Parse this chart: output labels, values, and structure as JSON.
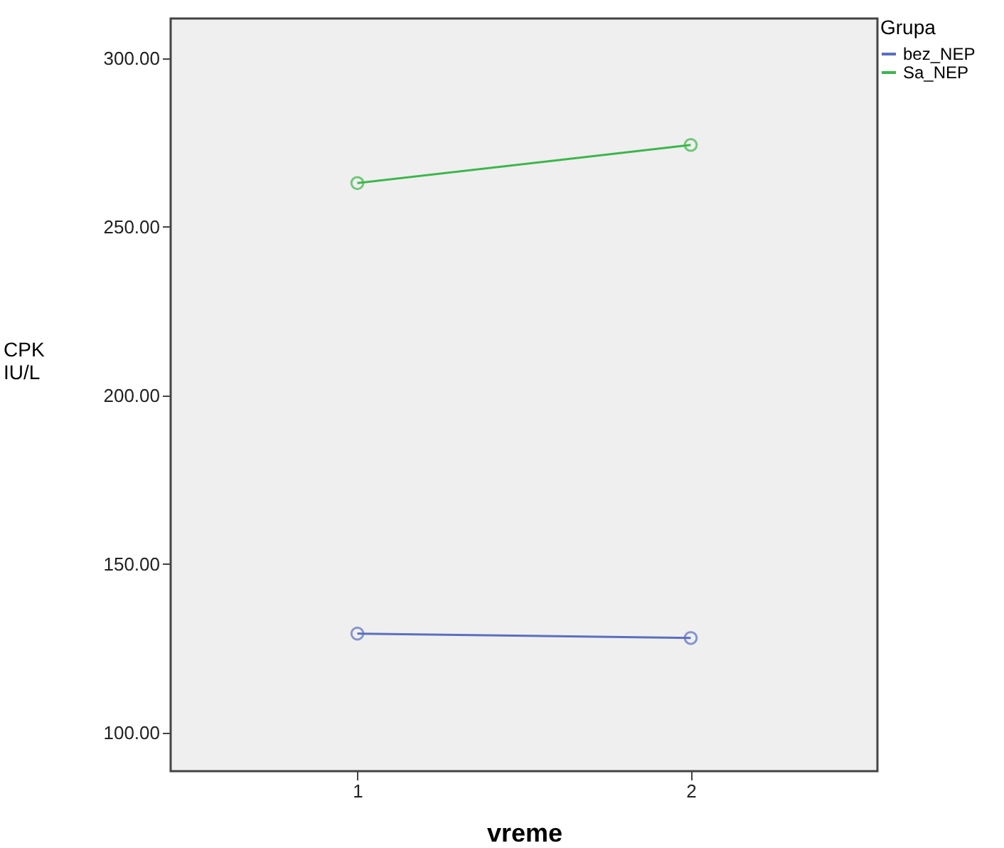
{
  "chart_data": {
    "type": "line",
    "xlabel": "vreme",
    "ylabel": "CPK\nIU/L",
    "legend_title": "Grupa",
    "categories": [
      "1",
      "2"
    ],
    "series": [
      {
        "name": "bez_NEP",
        "color": "#5b6fbf",
        "values": [
          129.4,
          128.1
        ]
      },
      {
        "name": "Sa_NEP",
        "color": "#3cb64a",
        "values": [
          263.0,
          274.3
        ]
      }
    ],
    "ylim": [
      88.6,
      311.8
    ],
    "yticks": [
      {
        "value": 100,
        "label": "100.00"
      },
      {
        "value": 150,
        "label": "150.00"
      },
      {
        "value": 200,
        "label": "200.00"
      },
      {
        "value": 250,
        "label": "250.00"
      },
      {
        "value": 300,
        "label": "300.00"
      }
    ],
    "marker": "circle",
    "legend": "top right",
    "grid": false
  }
}
